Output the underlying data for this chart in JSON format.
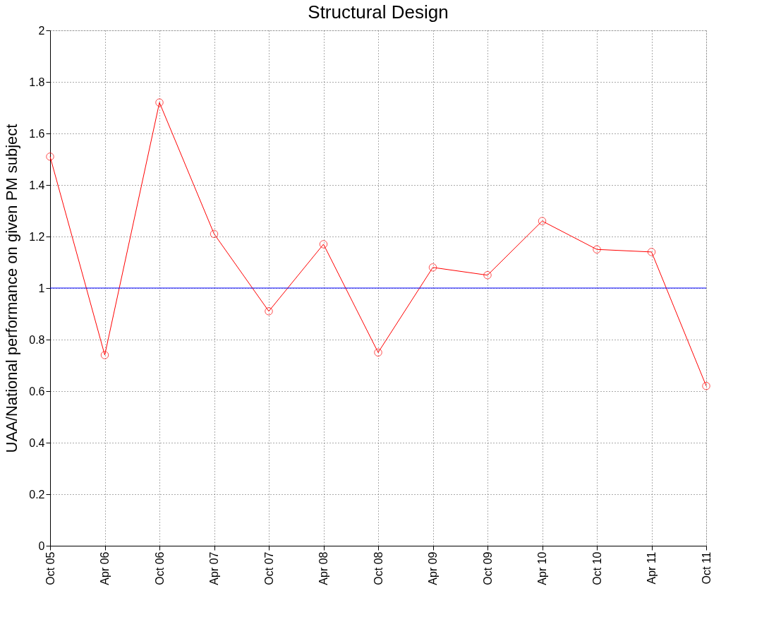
{
  "chart_data": {
    "type": "line",
    "title": "Structural Design",
    "ylabel": "UAA/National performance on given PM subject",
    "categories": [
      "Oct 05",
      "Apr 06",
      "Oct 06",
      "Apr 07",
      "Oct 07",
      "Apr 08",
      "Oct 08",
      "Apr 09",
      "Oct 09",
      "Apr 10",
      "Oct 10",
      "Apr 11",
      "Oct 11"
    ],
    "series": [
      {
        "color": "#ff0000",
        "values": [
          1.51,
          0.74,
          1.72,
          1.21,
          0.91,
          1.17,
          0.75,
          1.08,
          1.05,
          1.26,
          1.15,
          1.14,
          0.62
        ]
      }
    ],
    "ylim": [
      0,
      2
    ],
    "yticks": [
      0,
      0.2,
      0.4,
      0.6,
      0.8,
      1,
      1.2,
      1.4,
      1.6,
      1.8,
      2
    ],
    "ref_lines": [
      {
        "axis": "y",
        "value": 1,
        "color": "#0000ff"
      }
    ],
    "grid": true,
    "marker": "circle",
    "line_style": "solid"
  }
}
